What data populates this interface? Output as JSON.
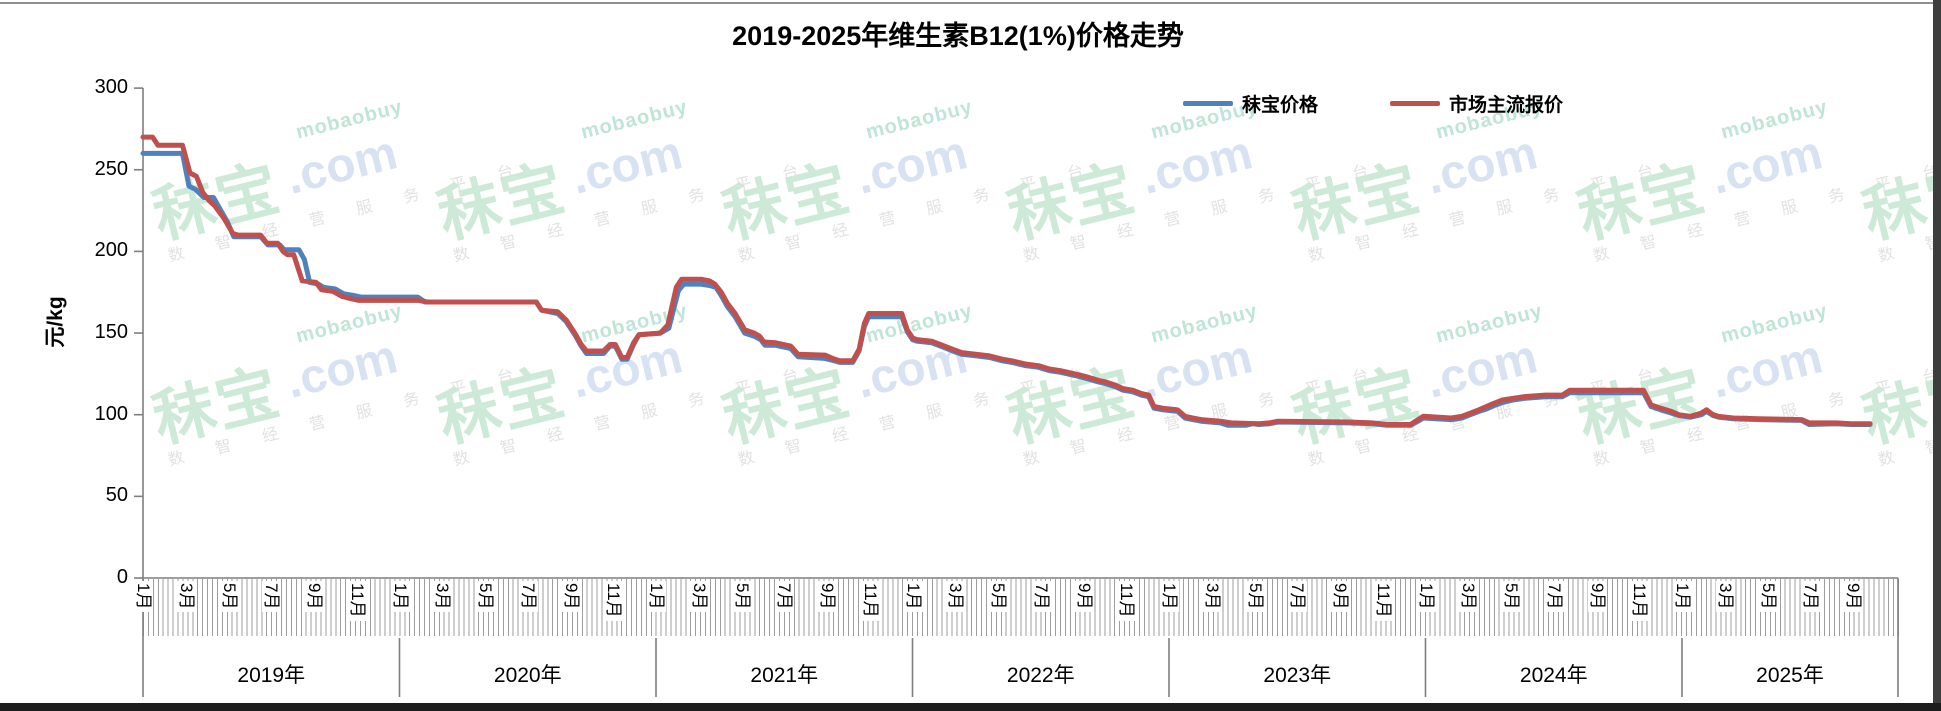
{
  "title": "2019-2025年维生素B12(1%)价格走势",
  "legend": {
    "items": [
      {
        "label": "秣宝价格",
        "color": "#4F81BD"
      },
      {
        "label": "市场主流报价",
        "color": "#C0504D"
      }
    ]
  },
  "watermark": {
    "brand": "秣宝",
    "domain": ".com",
    "latin": "mobaobuy",
    "tagline": "数 智 经 营 服 务 平 台"
  },
  "chart_data": {
    "type": "line",
    "title": "2019-2025年维生素B12(1%)价格走势",
    "ylabel": "元/kg",
    "ylim": [
      0,
      300
    ],
    "y_ticks": [
      0,
      50,
      100,
      150,
      200,
      250,
      300
    ],
    "grid": false,
    "legend_position": "top-right",
    "x_axis": {
      "unit": "months since Jan 2019 (weekly data)",
      "months_total": 82.1,
      "month_suffix": "月",
      "labeled_months": [
        1,
        3,
        5,
        7,
        9,
        11
      ],
      "years": [
        {
          "label": "2019年",
          "start_m": 0
        },
        {
          "label": "2020年",
          "start_m": 12
        },
        {
          "label": "2021年",
          "start_m": 24
        },
        {
          "label": "2022年",
          "start_m": 36
        },
        {
          "label": "2023年",
          "start_m": 48
        },
        {
          "label": "2024年",
          "start_m": 60
        },
        {
          "label": "2025年",
          "start_m": 72
        }
      ]
    },
    "series": [
      {
        "name": "秣宝价格",
        "color": "#4F81BD",
        "points": [
          [
            0,
            260
          ],
          [
            1.85,
            260
          ],
          [
            2.15,
            240
          ],
          [
            2.45,
            238
          ],
          [
            2.85,
            233
          ],
          [
            3.3,
            233
          ],
          [
            3.6,
            226
          ],
          [
            3.95,
            218
          ],
          [
            4.25,
            209
          ],
          [
            5.5,
            209
          ],
          [
            5.85,
            204
          ],
          [
            6.4,
            204
          ],
          [
            6.6,
            201
          ],
          [
            7.3,
            201
          ],
          [
            7.55,
            195
          ],
          [
            7.8,
            181
          ],
          [
            8.2,
            180
          ],
          [
            8.45,
            178
          ],
          [
            9.0,
            177
          ],
          [
            9.4,
            174
          ],
          [
            9.85,
            173
          ],
          [
            10.2,
            172
          ],
          [
            12.85,
            172
          ],
          [
            13.2,
            169
          ],
          [
            18.4,
            169
          ],
          [
            18.65,
            164
          ],
          [
            19.4,
            162
          ],
          [
            19.8,
            157
          ],
          [
            20.2,
            149
          ],
          [
            20.5,
            142
          ],
          [
            20.75,
            137.5
          ],
          [
            21.55,
            137.5
          ],
          [
            21.85,
            142
          ],
          [
            22.1,
            142
          ],
          [
            22.4,
            134
          ],
          [
            22.65,
            134
          ],
          [
            22.95,
            143
          ],
          [
            23.2,
            149
          ],
          [
            24.2,
            150
          ],
          [
            24.6,
            153
          ],
          [
            25.05,
            176
          ],
          [
            25.3,
            180
          ],
          [
            26.1,
            180
          ],
          [
            26.55,
            179
          ],
          [
            26.8,
            178
          ],
          [
            27.05,
            173
          ],
          [
            27.35,
            166
          ],
          [
            27.7,
            160
          ],
          [
            28.15,
            150
          ],
          [
            28.6,
            148
          ],
          [
            28.9,
            146
          ],
          [
            29.1,
            142.5
          ],
          [
            29.6,
            142.5
          ],
          [
            30.3,
            140.5
          ],
          [
            30.65,
            135.5
          ],
          [
            31.9,
            134.5
          ],
          [
            32.35,
            133
          ],
          [
            32.6,
            132
          ],
          [
            33.2,
            132
          ],
          [
            33.5,
            139
          ],
          [
            33.75,
            154
          ],
          [
            33.95,
            160
          ],
          [
            35.5,
            160
          ],
          [
            35.75,
            151
          ],
          [
            36.0,
            146
          ],
          [
            36.2,
            145
          ],
          [
            36.9,
            144
          ],
          [
            37.3,
            142
          ],
          [
            37.9,
            139
          ],
          [
            38.3,
            137
          ],
          [
            39.0,
            136
          ],
          [
            39.6,
            135
          ],
          [
            40.2,
            133
          ],
          [
            40.65,
            132
          ],
          [
            41.3,
            130
          ],
          [
            41.9,
            129
          ],
          [
            42.4,
            127
          ],
          [
            42.9,
            126
          ],
          [
            43.6,
            124
          ],
          [
            44.2,
            122
          ],
          [
            44.7,
            120
          ],
          [
            45.05,
            119
          ],
          [
            45.5,
            117
          ],
          [
            45.85,
            115
          ],
          [
            46.3,
            114
          ],
          [
            46.7,
            112
          ],
          [
            47.05,
            111
          ],
          [
            47.3,
            104
          ],
          [
            47.7,
            103
          ],
          [
            48.4,
            102
          ],
          [
            48.75,
            98
          ],
          [
            49.1,
            97
          ],
          [
            49.5,
            96
          ],
          [
            50.4,
            95
          ],
          [
            50.75,
            93.5
          ],
          [
            51.6,
            93.5
          ],
          [
            51.9,
            94.5
          ],
          [
            52.2,
            94
          ],
          [
            52.7,
            94.5
          ],
          [
            53.1,
            95.5
          ],
          [
            56.4,
            95
          ],
          [
            57.5,
            94.5
          ],
          [
            58.2,
            93.5
          ],
          [
            59.3,
            93.5
          ],
          [
            59.65,
            96
          ],
          [
            59.9,
            98
          ],
          [
            61.2,
            97
          ],
          [
            61.7,
            98
          ],
          [
            62.1,
            100
          ],
          [
            62.5,
            102
          ],
          [
            62.85,
            103.5
          ],
          [
            63.2,
            105.5
          ],
          [
            63.6,
            107.5
          ],
          [
            64.1,
            109
          ],
          [
            64.6,
            110
          ],
          [
            65.6,
            111
          ],
          [
            66.4,
            111
          ],
          [
            66.75,
            113.5
          ],
          [
            70.2,
            113.5
          ],
          [
            70.55,
            105
          ],
          [
            71.0,
            103
          ],
          [
            71.5,
            101
          ],
          [
            71.85,
            99.5
          ],
          [
            72.4,
            98.5
          ],
          [
            72.9,
            100
          ],
          [
            73.15,
            102
          ],
          [
            73.45,
            99.5
          ],
          [
            73.7,
            98.5
          ],
          [
            74.4,
            97.5
          ],
          [
            75.6,
            97
          ],
          [
            77.6,
            96.5
          ],
          [
            77.95,
            94
          ],
          [
            79.2,
            94.5
          ],
          [
            79.9,
            94
          ],
          [
            80.8,
            94
          ]
        ]
      },
      {
        "name": "市场主流报价",
        "color": "#C0504D",
        "points": [
          [
            0,
            270
          ],
          [
            0.45,
            270
          ],
          [
            0.7,
            265
          ],
          [
            1.85,
            265
          ],
          [
            2.2,
            248
          ],
          [
            2.5,
            246
          ],
          [
            2.8,
            236
          ],
          [
            3.1,
            231
          ],
          [
            3.35,
            228
          ],
          [
            3.8,
            220
          ],
          [
            4.2,
            211
          ],
          [
            4.45,
            210
          ],
          [
            5.5,
            210
          ],
          [
            5.8,
            205
          ],
          [
            6.3,
            205
          ],
          [
            6.55,
            200
          ],
          [
            6.75,
            198
          ],
          [
            7.05,
            198
          ],
          [
            7.45,
            182
          ],
          [
            8.1,
            181
          ],
          [
            8.35,
            176.5
          ],
          [
            8.9,
            175.5
          ],
          [
            9.3,
            172.5
          ],
          [
            9.75,
            171
          ],
          [
            10.1,
            170
          ],
          [
            12.9,
            170
          ],
          [
            13.3,
            169
          ],
          [
            18.4,
            169
          ],
          [
            18.65,
            164
          ],
          [
            19.4,
            163
          ],
          [
            19.8,
            158
          ],
          [
            20.2,
            150
          ],
          [
            20.5,
            143
          ],
          [
            20.75,
            139
          ],
          [
            21.55,
            139
          ],
          [
            21.85,
            143
          ],
          [
            22.1,
            143
          ],
          [
            22.4,
            135
          ],
          [
            22.65,
            135
          ],
          [
            22.95,
            144
          ],
          [
            23.2,
            149
          ],
          [
            24.2,
            150
          ],
          [
            24.55,
            155
          ],
          [
            24.95,
            178
          ],
          [
            25.2,
            183
          ],
          [
            26.1,
            183
          ],
          [
            26.5,
            182
          ],
          [
            26.75,
            180
          ],
          [
            27.05,
            175
          ],
          [
            27.35,
            168
          ],
          [
            27.7,
            162
          ],
          [
            28.15,
            152
          ],
          [
            28.6,
            150
          ],
          [
            28.85,
            148
          ],
          [
            29.05,
            144.5
          ],
          [
            29.6,
            144
          ],
          [
            30.3,
            142
          ],
          [
            30.65,
            137
          ],
          [
            31.9,
            136.5
          ],
          [
            32.35,
            134
          ],
          [
            32.6,
            133
          ],
          [
            33.2,
            133
          ],
          [
            33.5,
            140
          ],
          [
            33.75,
            156
          ],
          [
            33.95,
            162
          ],
          [
            35.5,
            162
          ],
          [
            35.75,
            152
          ],
          [
            36.0,
            147
          ],
          [
            36.2,
            146
          ],
          [
            36.9,
            145
          ],
          [
            37.3,
            143
          ],
          [
            37.9,
            140
          ],
          [
            38.3,
            138
          ],
          [
            39.0,
            137
          ],
          [
            39.6,
            136
          ],
          [
            40.2,
            134
          ],
          [
            40.65,
            133
          ],
          [
            41.3,
            131
          ],
          [
            41.9,
            130
          ],
          [
            42.4,
            128
          ],
          [
            42.9,
            127
          ],
          [
            43.6,
            125
          ],
          [
            44.2,
            123
          ],
          [
            44.7,
            121
          ],
          [
            45.05,
            120
          ],
          [
            45.5,
            118
          ],
          [
            45.85,
            116
          ],
          [
            46.3,
            115
          ],
          [
            46.7,
            113
          ],
          [
            47.05,
            112
          ],
          [
            47.3,
            105
          ],
          [
            47.7,
            104
          ],
          [
            48.4,
            103
          ],
          [
            48.75,
            99
          ],
          [
            49.1,
            98
          ],
          [
            49.5,
            97
          ],
          [
            50.4,
            96
          ],
          [
            50.9,
            95
          ],
          [
            52.2,
            94.5
          ],
          [
            52.7,
            95
          ],
          [
            53.1,
            96
          ],
          [
            56.4,
            95.5
          ],
          [
            57.5,
            95
          ],
          [
            58.2,
            94
          ],
          [
            59.3,
            94
          ],
          [
            59.65,
            97
          ],
          [
            59.9,
            99
          ],
          [
            61.2,
            98
          ],
          [
            61.7,
            99
          ],
          [
            62.1,
            101
          ],
          [
            62.5,
            103
          ],
          [
            62.85,
            105
          ],
          [
            63.2,
            107
          ],
          [
            63.6,
            109
          ],
          [
            64.1,
            110
          ],
          [
            64.6,
            111
          ],
          [
            65.6,
            112
          ],
          [
            66.4,
            112
          ],
          [
            66.75,
            115
          ],
          [
            70.2,
            115
          ],
          [
            70.55,
            106
          ],
          [
            71.0,
            104
          ],
          [
            71.5,
            102
          ],
          [
            71.85,
            100
          ],
          [
            72.4,
            99
          ],
          [
            72.9,
            101
          ],
          [
            73.15,
            103
          ],
          [
            73.45,
            100
          ],
          [
            73.7,
            99
          ],
          [
            74.4,
            98
          ],
          [
            75.6,
            97.5
          ],
          [
            77.6,
            97
          ],
          [
            77.95,
            95
          ],
          [
            79.2,
            95
          ],
          [
            79.9,
            94.5
          ],
          [
            80.8,
            94.5
          ]
        ]
      }
    ]
  }
}
